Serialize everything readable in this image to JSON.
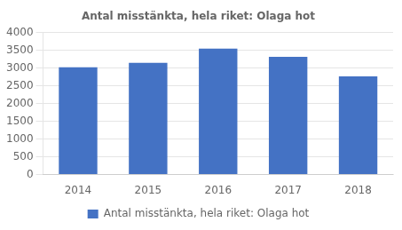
{
  "chart_data": {
    "type": "bar",
    "title": "Antal misstänkta, hela riket: Olaga hot",
    "categories": [
      "2014",
      "2015",
      "2016",
      "2017",
      "2018"
    ],
    "series": [
      {
        "name": "Antal misstänkta, hela riket: Olaga hot",
        "color": "#4472C4",
        "values": [
          3020,
          3140,
          3540,
          3310,
          2760
        ]
      }
    ],
    "ylim": [
      0,
      4000
    ],
    "yticks": [
      0,
      500,
      1000,
      1500,
      2000,
      2500,
      3000,
      3500,
      4000
    ],
    "grid": true,
    "legend": "bottom"
  }
}
